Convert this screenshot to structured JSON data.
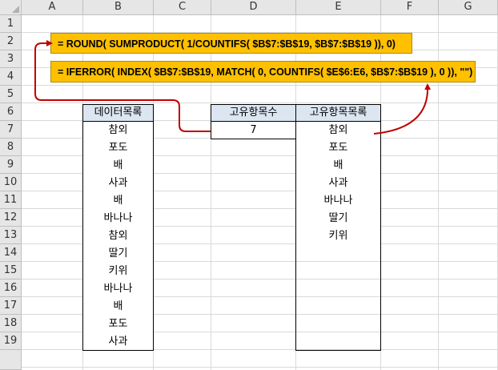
{
  "columns": [
    "A",
    "B",
    "C",
    "D",
    "E",
    "F",
    "G"
  ],
  "rows": [
    "1",
    "2",
    "3",
    "4",
    "5",
    "6",
    "7",
    "8",
    "9",
    "10",
    "11",
    "12",
    "13",
    "14",
    "15",
    "16",
    "17",
    "18",
    "19"
  ],
  "formula_round": "= ROUND( SUMPRODUCT( 1/COUNTIFS( $B$7:$B$19, $B$7:$B$19 )), 0)",
  "formula_index": "= IFERROR( INDEX( $B$7:$B$19, MATCH( 0, COUNTIFS( $E$6:E6, $B$7:$B$19 ), 0 )), \"\")",
  "data_list": {
    "header": "데이터목록",
    "items": [
      "참외",
      "포도",
      "배",
      "사과",
      "배",
      "바나나",
      "참외",
      "딸기",
      "키위",
      "바나나",
      "배",
      "포도",
      "사과"
    ]
  },
  "unique_count": {
    "header": "고유항목수",
    "value": "7"
  },
  "unique_list": {
    "header": "고유항목목록",
    "items": [
      "참외",
      "포도",
      "배",
      "사과",
      "바나나",
      "딸기",
      "키위"
    ]
  },
  "colors": {
    "formula_bg": "#ffc000",
    "header_bg": "#dce6f1",
    "arrow": "#c00000"
  }
}
